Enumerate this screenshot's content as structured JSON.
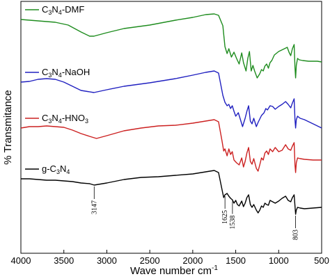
{
  "chart_data": {
    "type": "line",
    "title": "",
    "xlabel": "Wave number cm",
    "xlabel_sup": "-1",
    "ylabel": "% Transmitance",
    "xlim": [
      4000,
      500
    ],
    "x_reversed": true,
    "y_ticks_shown": false,
    "grid": false,
    "legend_placement": "inline-left-above-each-curve",
    "xticks": [
      "4000",
      "3500",
      "3000",
      "2500",
      "2000",
      "1500",
      "1000",
      "500"
    ],
    "series": [
      {
        "name": "C3N4-DMF",
        "label_parts": [
          "C",
          "3",
          "N",
          "4",
          "-DMF"
        ],
        "color": "#1e8c1e",
        "points": [
          [
            4000,
            26
          ],
          [
            3800,
            28
          ],
          [
            3600,
            30
          ],
          [
            3450,
            34
          ],
          [
            3300,
            44
          ],
          [
            3200,
            50
          ],
          [
            3150,
            50
          ],
          [
            3000,
            45
          ],
          [
            2800,
            39
          ],
          [
            2500,
            34
          ],
          [
            2200,
            27
          ],
          [
            2000,
            23
          ],
          [
            1850,
            19
          ],
          [
            1750,
            18
          ],
          [
            1700,
            20
          ],
          [
            1650,
            35
          ],
          [
            1625,
            65
          ],
          [
            1600,
            75
          ],
          [
            1580,
            68
          ],
          [
            1550,
            80
          ],
          [
            1520,
            73
          ],
          [
            1490,
            82
          ],
          [
            1460,
            90
          ],
          [
            1430,
            74
          ],
          [
            1410,
            88
          ],
          [
            1380,
            100
          ],
          [
            1360,
            82
          ],
          [
            1340,
            72
          ],
          [
            1320,
            100
          ],
          [
            1300,
            92
          ],
          [
            1280,
            100
          ],
          [
            1250,
            110
          ],
          [
            1220,
            104
          ],
          [
            1200,
            98
          ],
          [
            1180,
            100
          ],
          [
            1160,
            93
          ],
          [
            1140,
            90
          ],
          [
            1120,
            96
          ],
          [
            1100,
            88
          ],
          [
            1080,
            85
          ],
          [
            1050,
            77
          ],
          [
            1000,
            72
          ],
          [
            950,
            69
          ],
          [
            900,
            66
          ],
          [
            880,
            73
          ],
          [
            860,
            78
          ],
          [
            840,
            68
          ],
          [
            820,
            62
          ],
          [
            810,
            95
          ],
          [
            803,
            110
          ],
          [
            795,
            92
          ],
          [
            780,
            82
          ],
          [
            760,
            84
          ],
          [
            720,
            85
          ],
          [
            650,
            86
          ],
          [
            550,
            86
          ],
          [
            500,
            87
          ]
        ]
      },
      {
        "name": "C3N4-NaOH",
        "label_parts": [
          "C",
          "3",
          "N",
          "4",
          "-NaOH"
        ],
        "color": "#2020c0",
        "points": [
          [
            4000,
            116
          ],
          [
            3900,
            115
          ],
          [
            3800,
            112
          ],
          [
            3700,
            111
          ],
          [
            3600,
            112
          ],
          [
            3500,
            116
          ],
          [
            3400,
            122
          ],
          [
            3300,
            128
          ],
          [
            3150,
            131
          ],
          [
            3000,
            127
          ],
          [
            2800,
            122
          ],
          [
            2500,
            117
          ],
          [
            2200,
            111
          ],
          [
            2000,
            106
          ],
          [
            1850,
            102
          ],
          [
            1750,
            100
          ],
          [
            1700,
            103
          ],
          [
            1650,
            135
          ],
          [
            1625,
            145
          ],
          [
            1600,
            150
          ],
          [
            1580,
            148
          ],
          [
            1560,
            154
          ],
          [
            1540,
            150
          ],
          [
            1520,
            158
          ],
          [
            1500,
            165
          ],
          [
            1470,
            160
          ],
          [
            1440,
            172
          ],
          [
            1420,
            180
          ],
          [
            1390,
            168
          ],
          [
            1370,
            158
          ],
          [
            1350,
            150
          ],
          [
            1330,
            172
          ],
          [
            1310,
            176
          ],
          [
            1290,
            168
          ],
          [
            1260,
            180
          ],
          [
            1240,
            174
          ],
          [
            1200,
            164
          ],
          [
            1170,
            160
          ],
          [
            1150,
            154
          ],
          [
            1130,
            156
          ],
          [
            1100,
            150
          ],
          [
            1070,
            151
          ],
          [
            1040,
            155
          ],
          [
            1000,
            151
          ],
          [
            960,
            148
          ],
          [
            920,
            144
          ],
          [
            890,
            148
          ],
          [
            860,
            153
          ],
          [
            840,
            146
          ],
          [
            820,
            140
          ],
          [
            810,
            170
          ],
          [
            803,
            182
          ],
          [
            795,
            170
          ],
          [
            780,
            165
          ],
          [
            750,
            168
          ],
          [
            700,
            170
          ],
          [
            600,
            176
          ],
          [
            500,
            182
          ]
        ]
      },
      {
        "name": "C3N4-HNO3",
        "label_parts": [
          "C",
          "3",
          "N",
          "4",
          "-HNO",
          "3"
        ],
        "color": "#cc2020",
        "points": [
          [
            4000,
            182
          ],
          [
            3900,
            180
          ],
          [
            3800,
            180
          ],
          [
            3700,
            179
          ],
          [
            3600,
            180
          ],
          [
            3500,
            181
          ],
          [
            3400,
            185
          ],
          [
            3300,
            190
          ],
          [
            3200,
            194
          ],
          [
            3120,
            197
          ],
          [
            3000,
            193
          ],
          [
            2800,
            186
          ],
          [
            2600,
            182
          ],
          [
            2400,
            179
          ],
          [
            2200,
            178
          ],
          [
            2000,
            175
          ],
          [
            1850,
            172
          ],
          [
            1750,
            170
          ],
          [
            1700,
            173
          ],
          [
            1660,
            200
          ],
          [
            1640,
            215
          ],
          [
            1625,
            212
          ],
          [
            1600,
            222
          ],
          [
            1580,
            212
          ],
          [
            1560,
            220
          ],
          [
            1540,
            216
          ],
          [
            1520,
            228
          ],
          [
            1490,
            232
          ],
          [
            1460,
            235
          ],
          [
            1430,
            225
          ],
          [
            1410,
            238
          ],
          [
            1390,
            230
          ],
          [
            1370,
            218
          ],
          [
            1350,
            210
          ],
          [
            1330,
            230
          ],
          [
            1310,
            234
          ],
          [
            1290,
            226
          ],
          [
            1260,
            240
          ],
          [
            1240,
            244
          ],
          [
            1220,
            235
          ],
          [
            1200,
            225
          ],
          [
            1180,
            228
          ],
          [
            1160,
            218
          ],
          [
            1140,
            215
          ],
          [
            1120,
            220
          ],
          [
            1100,
            212
          ],
          [
            1070,
            216
          ],
          [
            1040,
            210
          ],
          [
            1000,
            216
          ],
          [
            960,
            214
          ],
          [
            920,
            206
          ],
          [
            890,
            212
          ],
          [
            860,
            214
          ],
          [
            840,
            208
          ],
          [
            820,
            203
          ],
          [
            810,
            235
          ],
          [
            803,
            246
          ],
          [
            795,
            232
          ],
          [
            780,
            225
          ],
          [
            750,
            226
          ],
          [
            700,
            227
          ],
          [
            600,
            228
          ],
          [
            500,
            228
          ]
        ]
      },
      {
        "name": "g-C3N4",
        "label_parts": [
          "g-C",
          "3",
          "N",
          "4"
        ],
        "color": "#000000",
        "points": [
          [
            4000,
            255
          ],
          [
            3900,
            255
          ],
          [
            3800,
            256
          ],
          [
            3700,
            257
          ],
          [
            3600,
            257
          ],
          [
            3500,
            258
          ],
          [
            3400,
            259
          ],
          [
            3300,
            261
          ],
          [
            3200,
            262
          ],
          [
            3147,
            264
          ],
          [
            3000,
            261
          ],
          [
            2800,
            256
          ],
          [
            2600,
            253
          ],
          [
            2400,
            252
          ],
          [
            2200,
            250
          ],
          [
            2000,
            248
          ],
          [
            1850,
            245
          ],
          [
            1750,
            243
          ],
          [
            1700,
            246
          ],
          [
            1660,
            270
          ],
          [
            1640,
            282
          ],
          [
            1625,
            278
          ],
          [
            1600,
            276
          ],
          [
            1580,
            280
          ],
          [
            1560,
            283
          ],
          [
            1540,
            285
          ],
          [
            1520,
            290
          ],
          [
            1500,
            286
          ],
          [
            1480,
            292
          ],
          [
            1460,
            294
          ],
          [
            1430,
            287
          ],
          [
            1410,
            295
          ],
          [
            1390,
            290
          ],
          [
            1370,
            282
          ],
          [
            1350,
            278
          ],
          [
            1330,
            292
          ],
          [
            1310,
            296
          ],
          [
            1290,
            292
          ],
          [
            1260,
            300
          ],
          [
            1240,
            304
          ],
          [
            1220,
            300
          ],
          [
            1200,
            294
          ],
          [
            1180,
            296
          ],
          [
            1160,
            290
          ],
          [
            1140,
            292
          ],
          [
            1120,
            293
          ],
          [
            1100,
            286
          ],
          [
            1070,
            288
          ],
          [
            1040,
            290
          ],
          [
            1000,
            287
          ],
          [
            960,
            283
          ],
          [
            920,
            280
          ],
          [
            890,
            286
          ],
          [
            860,
            288
          ],
          [
            840,
            282
          ],
          [
            820,
            278
          ],
          [
            810,
            294
          ],
          [
            803,
            306
          ],
          [
            795,
            300
          ],
          [
            780,
            296
          ],
          [
            750,
            297
          ],
          [
            700,
            298
          ],
          [
            600,
            297
          ],
          [
            500,
            296
          ]
        ]
      }
    ],
    "annotations": [
      {
        "label": "3147",
        "x": 3147
      },
      {
        "label": "1625",
        "x": 1625
      },
      {
        "label": "1538",
        "x": 1538
      },
      {
        "label": "803",
        "x": 803
      }
    ]
  }
}
